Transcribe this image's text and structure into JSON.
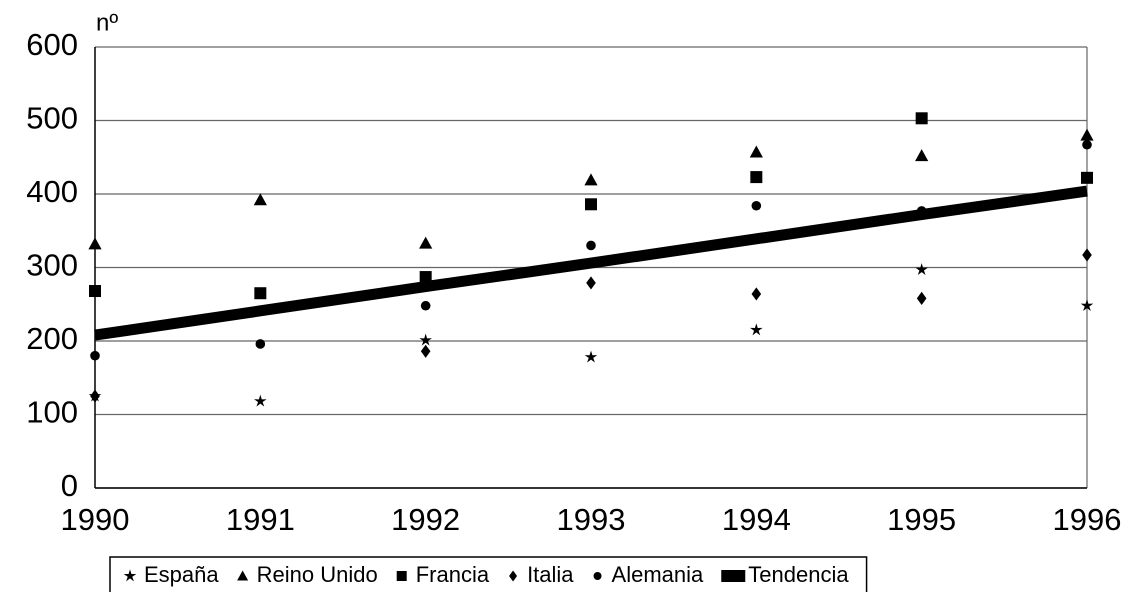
{
  "chart_data": {
    "type": "scatter",
    "y_axis_label": "nº",
    "x": [
      1990,
      1991,
      1992,
      1993,
      1994,
      1995,
      1996
    ],
    "xlim": [
      1990,
      1996
    ],
    "xticks": [
      1990,
      1991,
      1992,
      1993,
      1994,
      1995,
      1996
    ],
    "ylim": [
      0,
      600
    ],
    "yticks": [
      0,
      100,
      200,
      300,
      400,
      500,
      600
    ],
    "grid": true,
    "legend": "bottom",
    "series": [
      {
        "name": "España",
        "color": "#000000",
        "marker": "star",
        "values": [
          125,
          118,
          201,
          178,
          215,
          297,
          248
        ]
      },
      {
        "name": "Reino Unido",
        "color": "#000000",
        "marker": "triangle",
        "values": [
          332,
          392,
          333,
          419,
          457,
          452,
          480
        ]
      },
      {
        "name": "Francia",
        "color": "#000000",
        "marker": "square",
        "values": [
          268,
          265,
          287,
          386,
          423,
          503,
          422
        ]
      },
      {
        "name": "Italia",
        "color": "#000000",
        "marker": "diamond",
        "values": [
          125,
          null,
          186,
          279,
          264,
          258,
          317
        ]
      },
      {
        "name": "Alemania",
        "color": "#000000",
        "marker": "circle",
        "values": [
          180,
          196,
          248,
          330,
          384,
          377,
          467
        ]
      },
      {
        "name": "Tendencia",
        "color": "#000000",
        "marker": "line",
        "values": [
          208,
          241,
          274,
          306,
          339,
          372,
          404
        ]
      }
    ]
  }
}
